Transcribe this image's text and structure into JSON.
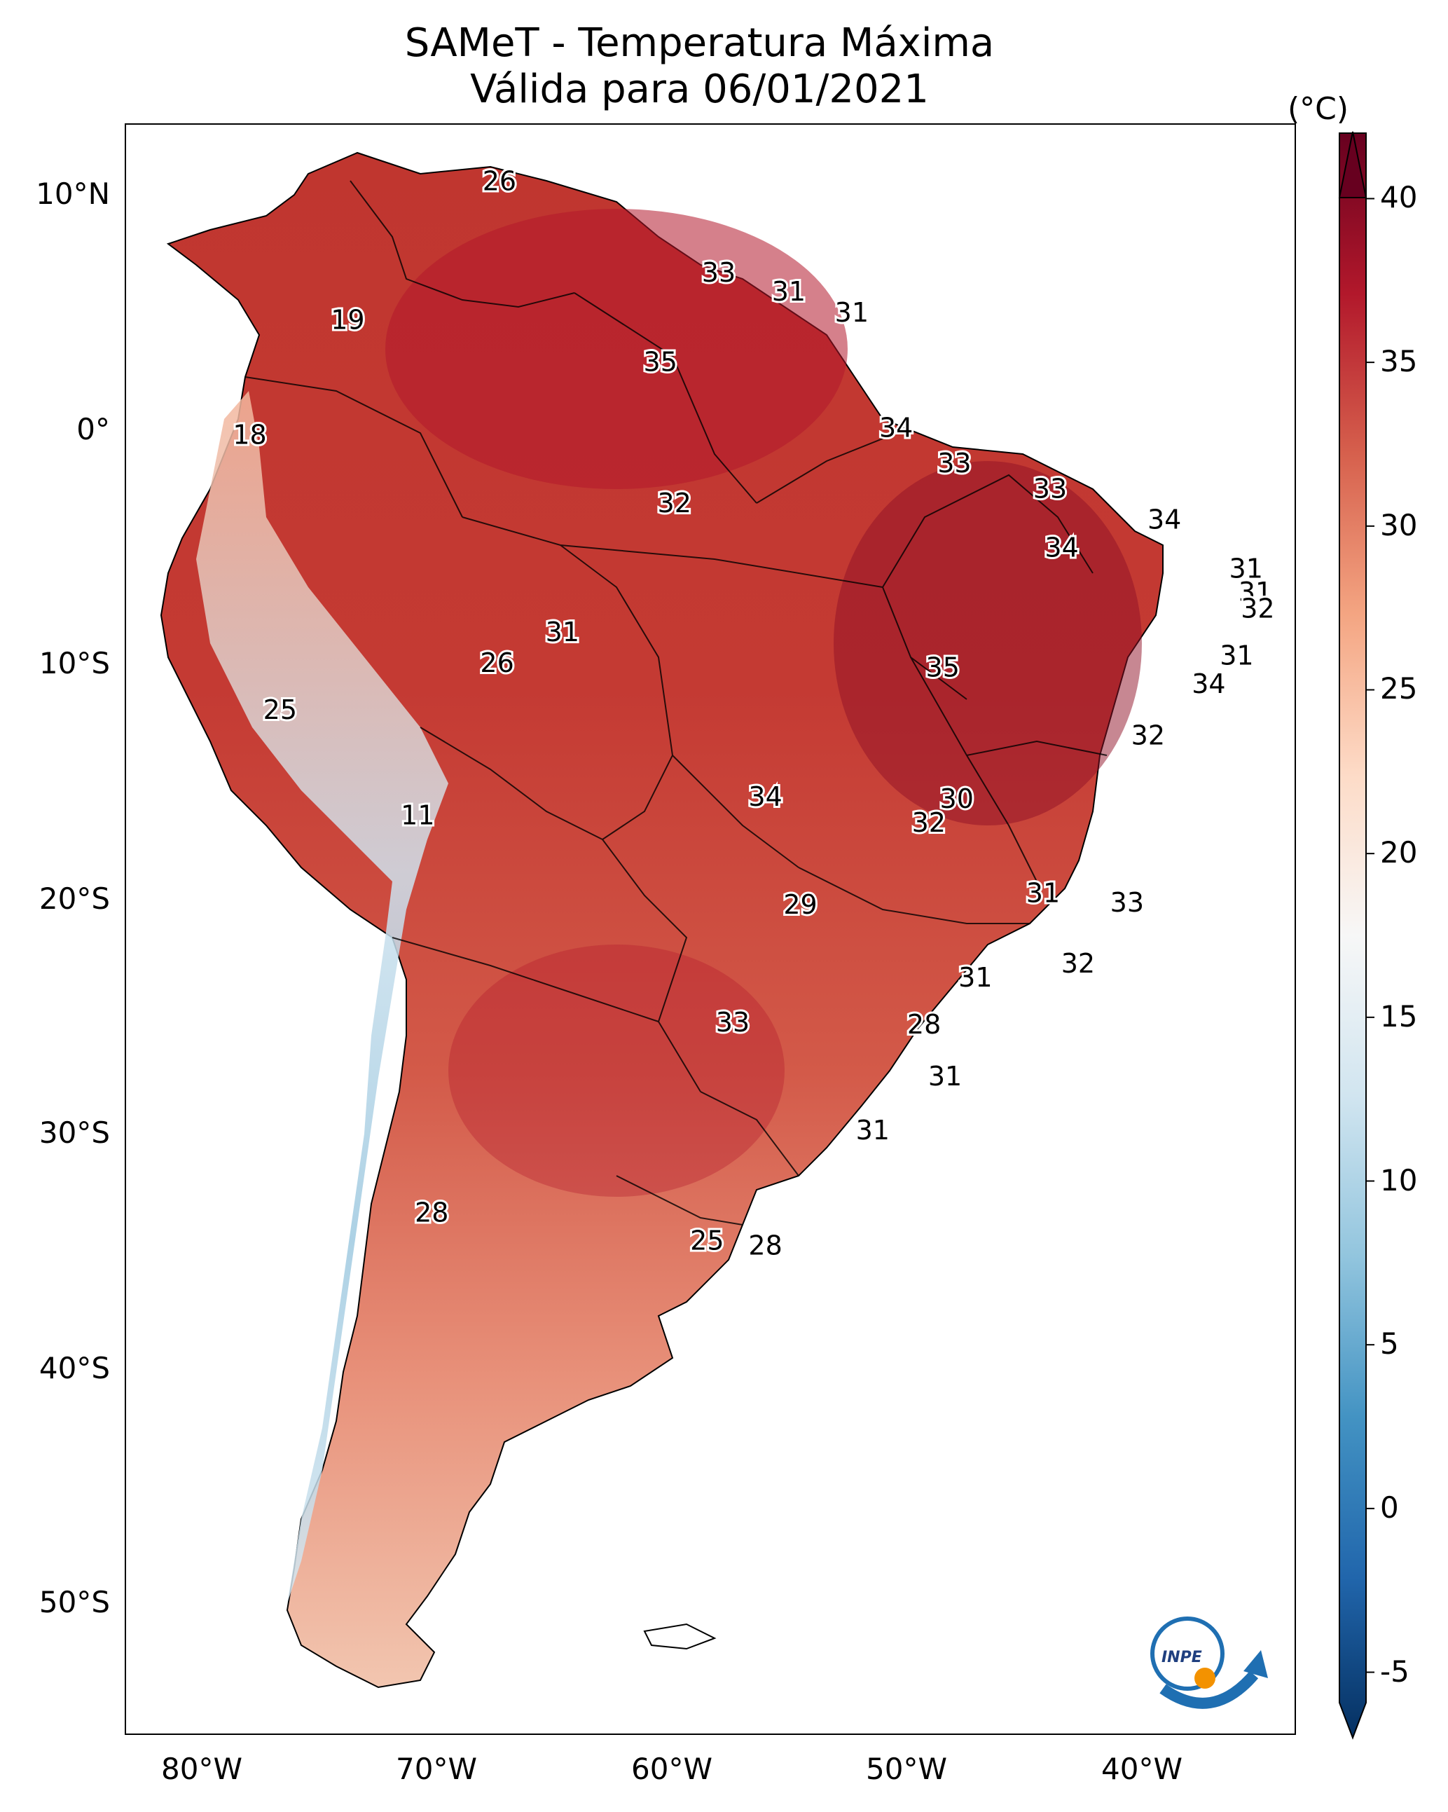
{
  "title": {
    "line1": "SAMeT - Temperatura Máxima",
    "line2": "Válida para 06/01/2021"
  },
  "axes": {
    "lat_labels": [
      "10°N",
      "0°",
      "10°S",
      "20°S",
      "30°S",
      "40°S",
      "50°S"
    ],
    "lon_labels": [
      "80°W",
      "70°W",
      "60°W",
      "50°W",
      "40°W"
    ]
  },
  "colorbar": {
    "unit": "(°C)",
    "min": -7,
    "max": 42,
    "ticks": [
      "40",
      "35",
      "30",
      "25",
      "20",
      "15",
      "10",
      "5",
      "0",
      "-5"
    ],
    "tick_values": [
      40,
      35,
      30,
      25,
      20,
      15,
      10,
      5,
      0,
      -5
    ],
    "colors": [
      "#053061",
      "#2166ac",
      "#4393c3",
      "#92c5de",
      "#d1e5f0",
      "#f7f7f7",
      "#fddbc7",
      "#f4a582",
      "#d6604d",
      "#b2182b",
      "#67001f"
    ]
  },
  "labels": [
    {
      "text": "26",
      "lon": -67.2,
      "lat": 10.5
    },
    {
      "text": "33",
      "lon": -57.8,
      "lat": 6.6
    },
    {
      "text": "31",
      "lon": -54.8,
      "lat": 5.8
    },
    {
      "text": "31",
      "lon": -52.1,
      "lat": 4.9
    },
    {
      "text": "19",
      "lon": -73.7,
      "lat": 4.6
    },
    {
      "text": "35",
      "lon": -60.3,
      "lat": 2.8
    },
    {
      "text": "18",
      "lon": -77.9,
      "lat": -0.3
    },
    {
      "text": "34",
      "lon": -50.2,
      "lat": 0.0
    },
    {
      "text": "33",
      "lon": -47.7,
      "lat": -1.5
    },
    {
      "text": "32",
      "lon": -59.7,
      "lat": -3.2
    },
    {
      "text": "33",
      "lon": -43.6,
      "lat": -2.6
    },
    {
      "text": "34",
      "lon": -38.7,
      "lat": -3.9
    },
    {
      "text": "34",
      "lon": -43.1,
      "lat": -5.1
    },
    {
      "text": "31",
      "lon": -35.2,
      "lat": -6.0
    },
    {
      "text": "31",
      "lon": -34.8,
      "lat": -7.0
    },
    {
      "text": "32",
      "lon": -34.7,
      "lat": -7.7
    },
    {
      "text": "31",
      "lon": -64.5,
      "lat": -8.7
    },
    {
      "text": "31",
      "lon": -35.6,
      "lat": -9.7
    },
    {
      "text": "26",
      "lon": -67.3,
      "lat": -10.0
    },
    {
      "text": "35",
      "lon": -48.2,
      "lat": -10.2
    },
    {
      "text": "34",
      "lon": -36.8,
      "lat": -10.9
    },
    {
      "text": "25",
      "lon": -76.6,
      "lat": -12.0
    },
    {
      "text": "32",
      "lon": -39.4,
      "lat": -13.1
    },
    {
      "text": "34",
      "lon": -55.8,
      "lat": -15.7
    },
    {
      "text": "30",
      "lon": -47.6,
      "lat": -15.8
    },
    {
      "text": "32",
      "lon": -48.8,
      "lat": -16.8
    },
    {
      "text": "11",
      "lon": -70.7,
      "lat": -16.5
    },
    {
      "text": "31",
      "lon": -43.9,
      "lat": -19.8
    },
    {
      "text": "33",
      "lon": -40.3,
      "lat": -20.2
    },
    {
      "text": "29",
      "lon": -54.3,
      "lat": -20.3
    },
    {
      "text": "32",
      "lon": -42.4,
      "lat": -22.8
    },
    {
      "text": "31",
      "lon": -46.8,
      "lat": -23.4
    },
    {
      "text": "33",
      "lon": -57.2,
      "lat": -25.3
    },
    {
      "text": "28",
      "lon": -49.0,
      "lat": -25.4
    },
    {
      "text": "31",
      "lon": -48.1,
      "lat": -27.6
    },
    {
      "text": "31",
      "lon": -51.2,
      "lat": -29.9
    },
    {
      "text": "28",
      "lon": -70.1,
      "lat": -33.4
    },
    {
      "text": "25",
      "lon": -58.3,
      "lat": -34.6
    },
    {
      "text": "28",
      "lon": -55.8,
      "lat": -34.8
    }
  ]
}
